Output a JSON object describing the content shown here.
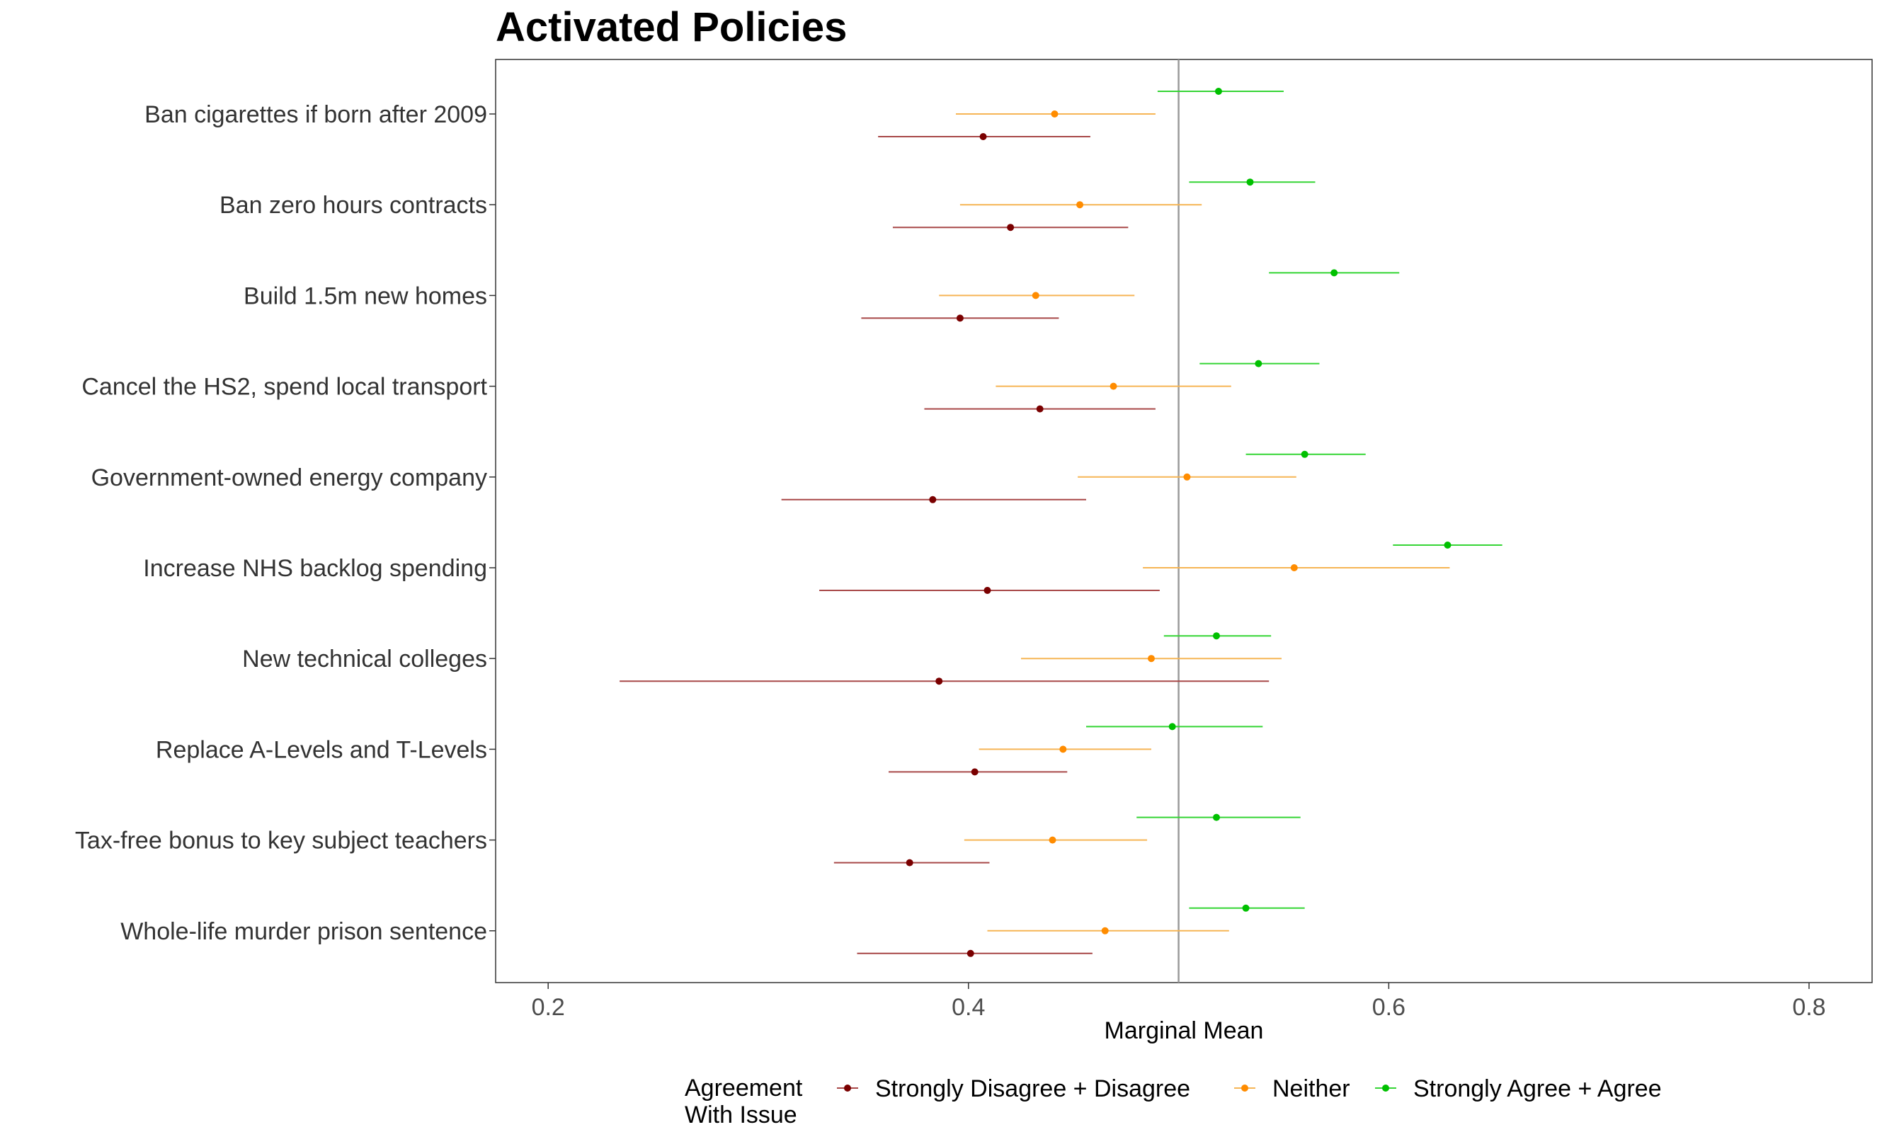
{
  "chart_data": {
    "type": "scatter",
    "title": "Activated Policies",
    "xlabel": "Marginal Mean",
    "ylabel": "",
    "xlim": [
      0.175,
      0.83
    ],
    "xticks": [
      0.2,
      0.4,
      0.6,
      0.8
    ],
    "xtick_labels": [
      "0.2",
      "0.4",
      "0.6",
      "0.8"
    ],
    "reference_line": 0.5,
    "grid": false,
    "legend": {
      "title_line1": "Agreement",
      "title_line2": "With Issue",
      "placement": "bottom"
    },
    "categories": [
      "Ban cigarettes if born after 2009",
      "Ban zero hours contracts",
      "Build 1.5m new homes",
      "Cancel the HS2, spend local transport",
      "Government-owned energy company",
      "Increase NHS backlog spending",
      "New technical colleges",
      "Replace A-Levels and T-Levels",
      "Tax-free bonus to key subject teachers",
      "Whole-life murder prison sentence"
    ],
    "series": [
      {
        "name": "Strongly Disagree + Disagree",
        "color": "#7a0000",
        "line_color": "#a84848",
        "estimate": [
          0.407,
          0.42,
          0.396,
          0.434,
          0.383,
          0.409,
          0.386,
          0.403,
          0.372,
          0.401
        ],
        "lower": [
          0.357,
          0.364,
          0.349,
          0.379,
          0.311,
          0.329,
          0.234,
          0.362,
          0.336,
          0.347
        ],
        "upper": [
          0.458,
          0.476,
          0.443,
          0.489,
          0.456,
          0.491,
          0.543,
          0.447,
          0.41,
          0.459
        ]
      },
      {
        "name": "Neither",
        "color": "#ff8c00",
        "line_color": "#f6b555",
        "estimate": [
          0.441,
          0.453,
          0.432,
          0.469,
          0.504,
          0.555,
          0.487,
          0.445,
          0.44,
          0.465
        ],
        "lower": [
          0.394,
          0.396,
          0.386,
          0.413,
          0.452,
          0.483,
          0.425,
          0.405,
          0.398,
          0.409
        ],
        "upper": [
          0.489,
          0.511,
          0.479,
          0.525,
          0.556,
          0.629,
          0.549,
          0.487,
          0.485,
          0.524
        ]
      },
      {
        "name": "Strongly Agree + Agree",
        "color": "#00c000",
        "line_color": "#35d535",
        "estimate": [
          0.519,
          0.534,
          0.574,
          0.538,
          0.56,
          0.628,
          0.518,
          0.497,
          0.518,
          0.532
        ],
        "lower": [
          0.49,
          0.505,
          0.543,
          0.51,
          0.532,
          0.602,
          0.493,
          0.456,
          0.48,
          0.505
        ],
        "upper": [
          0.55,
          0.565,
          0.605,
          0.567,
          0.589,
          0.654,
          0.544,
          0.54,
          0.558,
          0.56
        ]
      }
    ]
  }
}
